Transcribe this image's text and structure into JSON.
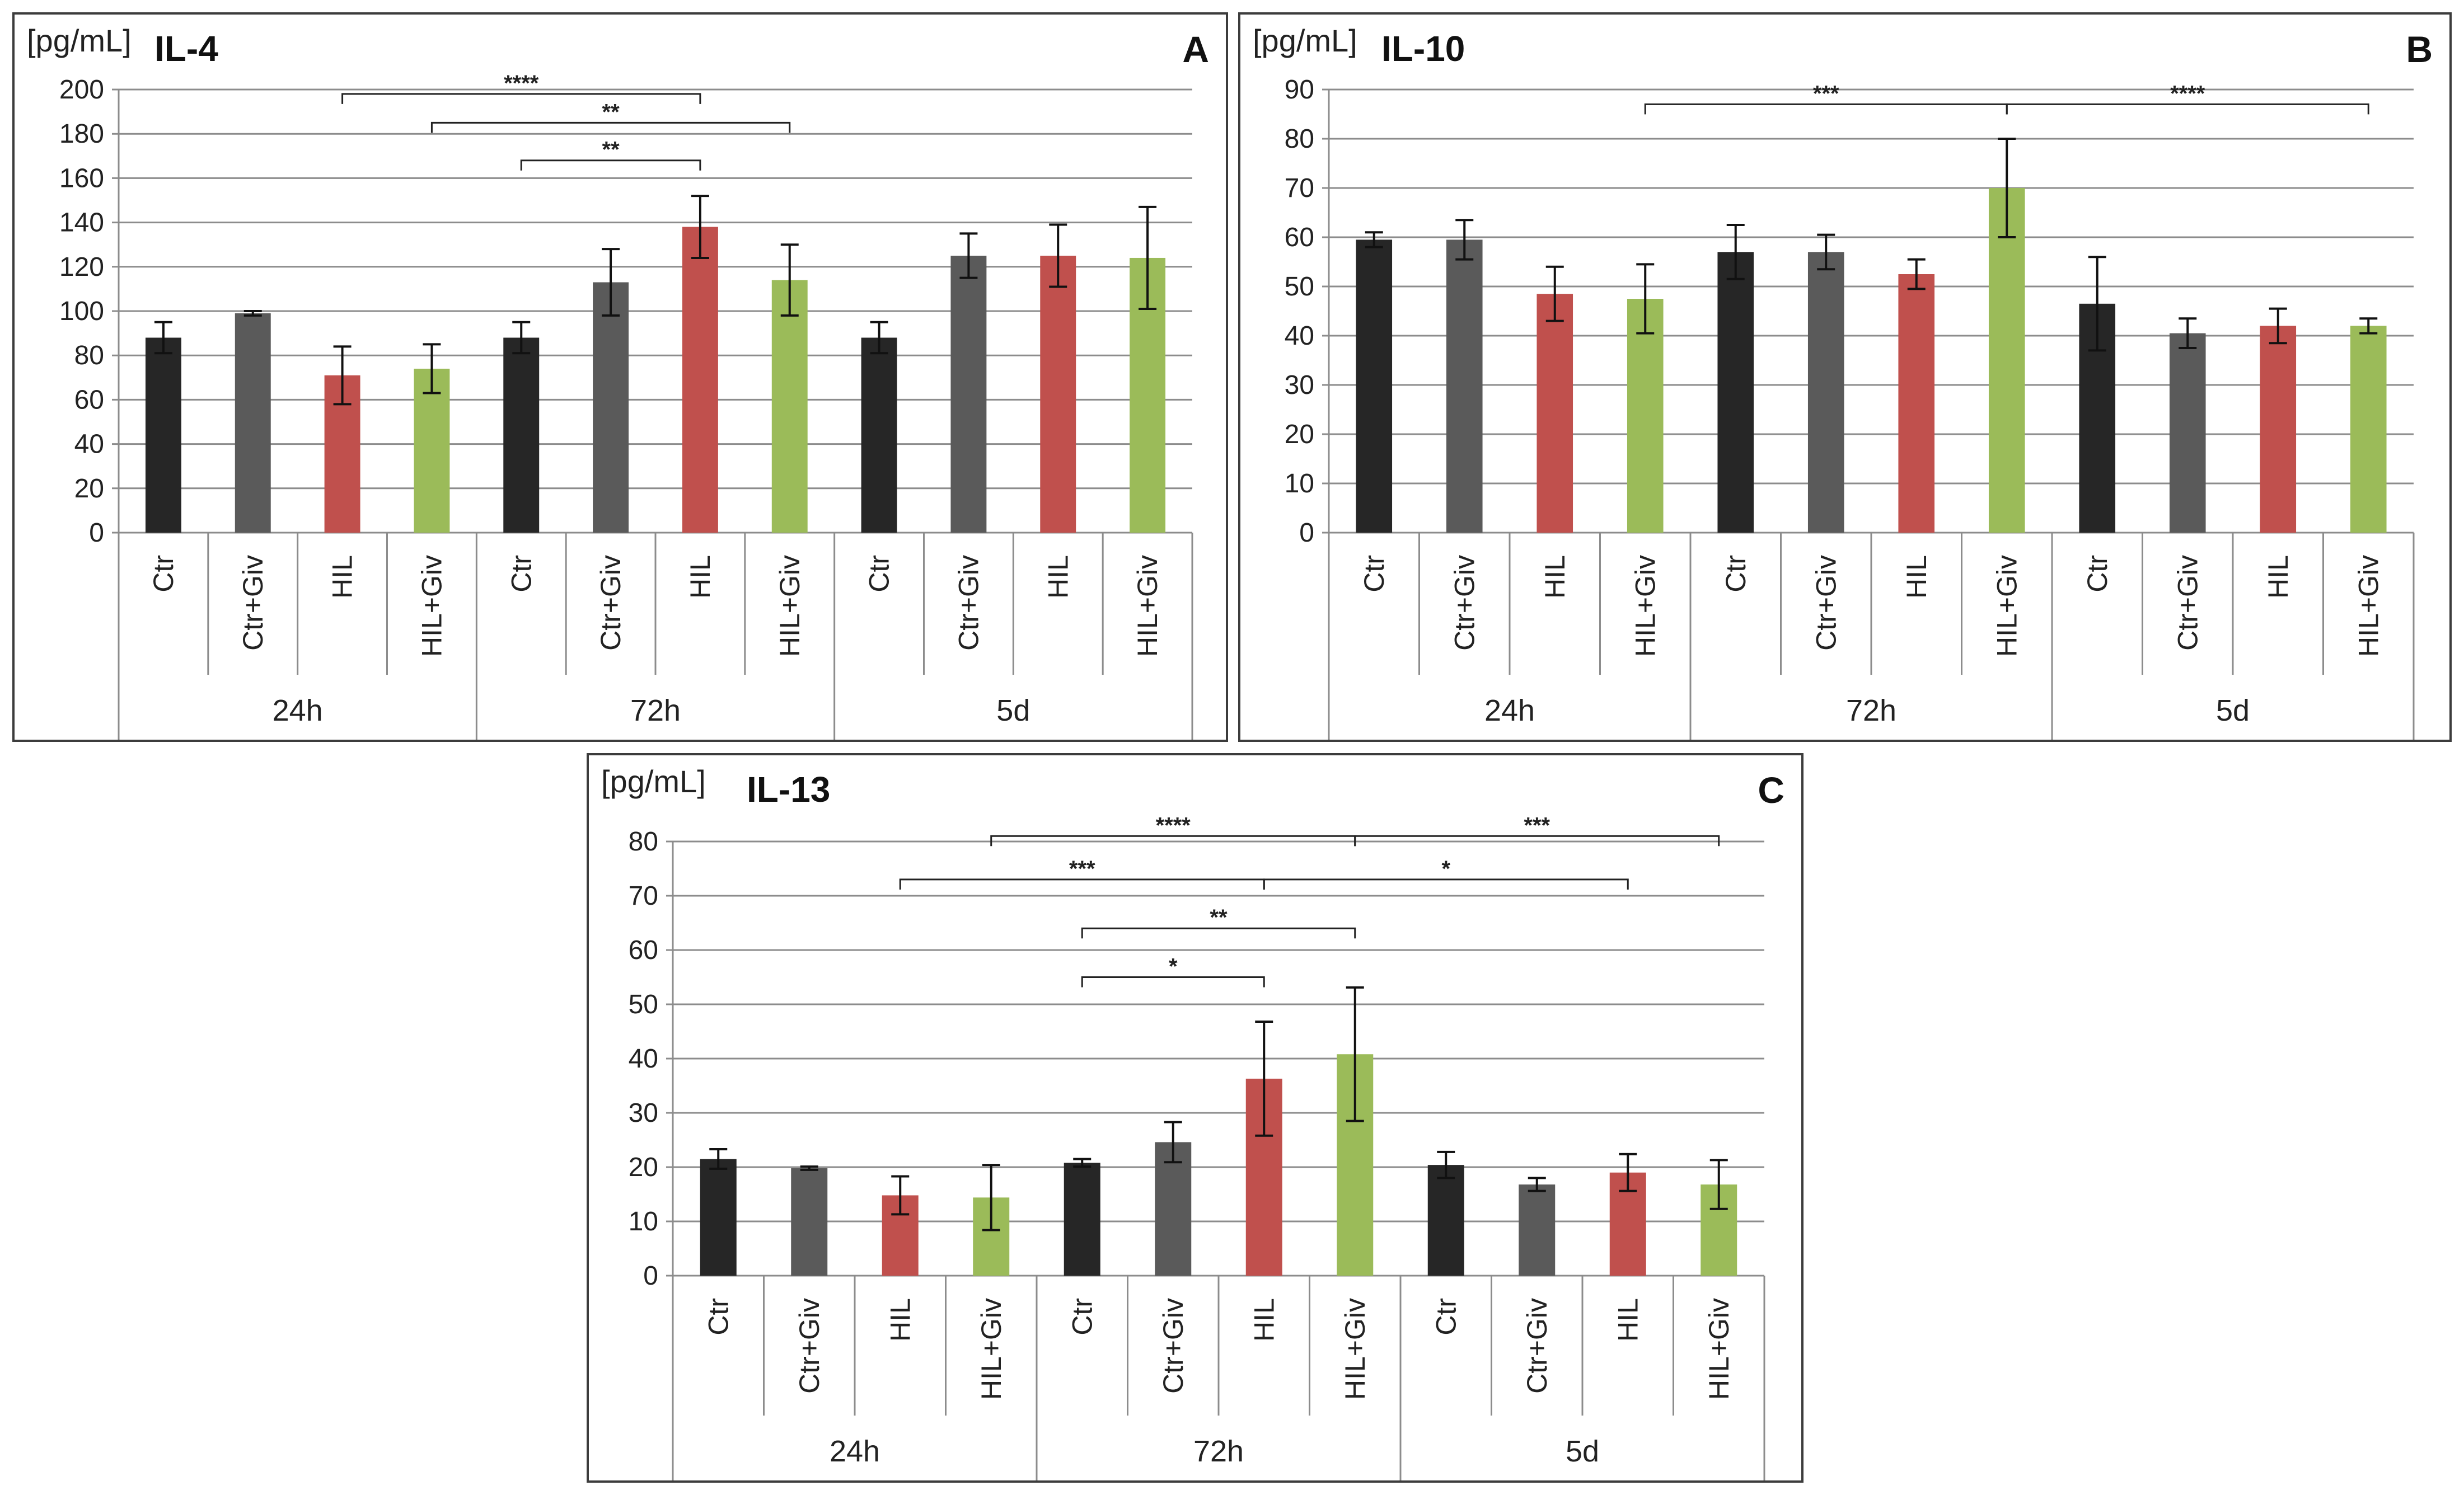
{
  "chart_data": [
    {
      "type": "bar",
      "panel": "A",
      "title": "IL-4",
      "ylabel": "[pg/mL]",
      "ylim": [
        0,
        200
      ],
      "yticks": [
        0,
        20,
        40,
        60,
        80,
        100,
        120,
        140,
        160,
        180,
        200
      ],
      "grid": true,
      "groups": [
        "24h",
        "72h",
        "5d"
      ],
      "categories": [
        "Ctr",
        "Ctr+Giv",
        "HIL",
        "HIL+Giv",
        "Ctr",
        "Ctr+Giv",
        "HIL",
        "HIL+Giv",
        "Ctr",
        "Ctr+Giv",
        "HIL",
        "HIL+Giv"
      ],
      "values": [
        88,
        99,
        71,
        74,
        88,
        113,
        138,
        114,
        88,
        125,
        125,
        124
      ],
      "errors": [
        7,
        1,
        13,
        11,
        7,
        15,
        14,
        16,
        7,
        10,
        14,
        23
      ],
      "colors": [
        "#262626",
        "#5a5a5a",
        "#c0504d",
        "#9bbb59",
        "#262626",
        "#5a5a5a",
        "#c0504d",
        "#9bbb59",
        "#262626",
        "#5a5a5a",
        "#c0504d",
        "#9bbb59"
      ],
      "significance": [
        {
          "from": 2,
          "to": 6,
          "label": "****",
          "level": 198
        },
        {
          "from": 3,
          "to": 7,
          "label": "**",
          "level": 185
        },
        {
          "from": 4,
          "to": 6,
          "label": "**",
          "level": 168
        }
      ]
    },
    {
      "type": "bar",
      "panel": "B",
      "title": "IL-10",
      "ylabel": "[pg/mL]",
      "ylim": [
        0,
        90
      ],
      "yticks": [
        0,
        10,
        20,
        30,
        40,
        50,
        60,
        70,
        80,
        90
      ],
      "grid": true,
      "groups": [
        "24h",
        "72h",
        "5d"
      ],
      "categories": [
        "Ctr",
        "Ctr+Giv",
        "HIL",
        "HIL+Giv",
        "Ctr",
        "Ctr+Giv",
        "HIL",
        "HIL+Giv",
        "Ctr",
        "Ctr+Giv",
        "HIL",
        "HIL+Giv"
      ],
      "values": [
        59.5,
        59.5,
        48.5,
        47.5,
        57,
        57,
        52.5,
        70,
        46.5,
        40.5,
        42,
        42
      ],
      "errors": [
        1.5,
        4,
        5.5,
        7,
        5.5,
        3.5,
        3,
        10,
        9.5,
        3,
        3.5,
        1.5
      ],
      "colors": [
        "#262626",
        "#5a5a5a",
        "#c0504d",
        "#9bbb59",
        "#262626",
        "#5a5a5a",
        "#c0504d",
        "#9bbb59",
        "#262626",
        "#5a5a5a",
        "#c0504d",
        "#9bbb59"
      ],
      "significance": [
        {
          "from": 3,
          "to": 7,
          "label": "***",
          "level": 87
        },
        {
          "from": 7,
          "to": 11,
          "label": "****",
          "level": 87
        }
      ]
    },
    {
      "type": "bar",
      "panel": "C",
      "title": "IL-13",
      "ylabel": "[pg/mL]",
      "ylim": [
        0,
        80
      ],
      "yticks": [
        0,
        10,
        20,
        30,
        40,
        50,
        60,
        70,
        80
      ],
      "grid": true,
      "groups": [
        "24h",
        "72h",
        "5d"
      ],
      "categories": [
        "Ctr",
        "Ctr+Giv",
        "HIL",
        "HIL+Giv",
        "Ctr",
        "Ctr+Giv",
        "HIL",
        "HIL+Giv",
        "Ctr",
        "Ctr+Giv",
        "HIL",
        "HIL+Giv"
      ],
      "values": [
        21.5,
        19.8,
        14.8,
        14.4,
        20.8,
        24.6,
        36.3,
        40.8,
        20.4,
        16.8,
        19,
        16.8
      ],
      "errors": [
        1.8,
        0.3,
        3.5,
        6,
        0.7,
        3.7,
        10.5,
        12.3,
        2.4,
        1.2,
        3.4,
        4.5
      ],
      "colors": [
        "#262626",
        "#5a5a5a",
        "#c0504d",
        "#9bbb59",
        "#262626",
        "#5a5a5a",
        "#c0504d",
        "#9bbb59",
        "#262626",
        "#5a5a5a",
        "#c0504d",
        "#9bbb59"
      ],
      "significance": [
        {
          "from": 3,
          "to": 7,
          "label": "****",
          "level": 81
        },
        {
          "from": 7,
          "to": 11,
          "label": "***",
          "level": 81
        },
        {
          "from": 2,
          "to": 6,
          "label": "***",
          "level": 73
        },
        {
          "from": 6,
          "to": 10,
          "label": "*",
          "level": 73
        },
        {
          "from": 4,
          "to": 7,
          "label": "**",
          "level": 64
        },
        {
          "from": 4,
          "to": 6,
          "label": "*",
          "level": 55
        }
      ]
    }
  ]
}
